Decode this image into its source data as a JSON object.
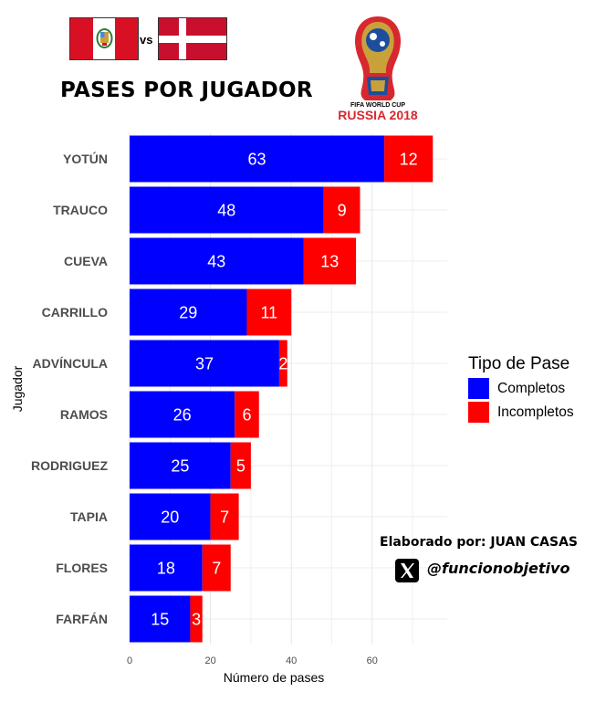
{
  "header": {
    "title": "PASES POR JUGADOR",
    "versus": "vs"
  },
  "logo": {
    "line1": "FIFA WORLD CUP",
    "line2": "RUSSIA 2018",
    "colors": {
      "red": "#d7282f",
      "gold": "#c9a13a",
      "blue": "#1d4e9e"
    }
  },
  "flags": [
    {
      "country": "Peru",
      "colors": [
        "#d91023",
        "#ffffff",
        "#d91023"
      ]
    },
    {
      "country": "Denmark",
      "colors": [
        "#c8102e",
        "#ffffff"
      ]
    }
  ],
  "chart_data": {
    "type": "bar",
    "orientation": "horizontal",
    "stacked": true,
    "categories": [
      "YOTÚN",
      "TRAUCO",
      "CUEVA",
      "CARRILLO",
      "ADVÍNCULA",
      "RAMOS",
      "RODRIGUEZ",
      "TAPIA",
      "FLORES",
      "FARFÁN"
    ],
    "series": [
      {
        "name": "Completos",
        "color": "#0000ff",
        "values": [
          63,
          48,
          43,
          29,
          37,
          26,
          25,
          20,
          18,
          15
        ]
      },
      {
        "name": "Incompletos",
        "color": "#ff0000",
        "values": [
          12,
          9,
          13,
          11,
          2,
          6,
          5,
          7,
          7,
          3
        ]
      }
    ],
    "xlabel": "Número de pases",
    "ylabel": "Jugador",
    "xlim": [
      0,
      80
    ],
    "xticks": [
      0,
      20,
      40,
      60
    ],
    "legend_title": "Tipo de Pase",
    "legend_position": "right",
    "grid": true
  },
  "credits": {
    "author": "Elaborado por: JUAN CASAS",
    "handle": "@funcionobjetivo",
    "icon": "x-logo-icon"
  }
}
